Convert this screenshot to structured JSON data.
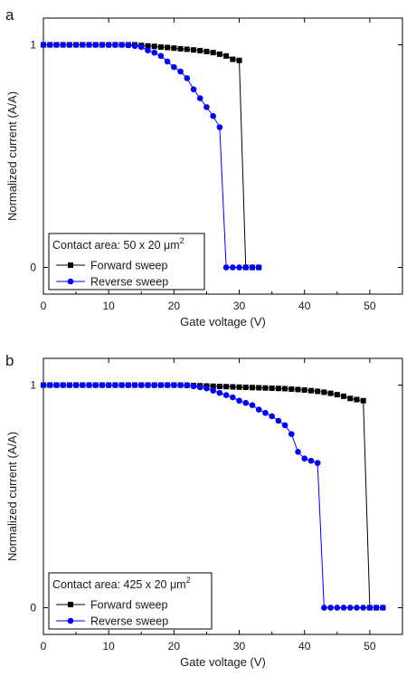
{
  "chart_data": [
    {
      "panel_label": "a",
      "type": "scatter",
      "xlabel": "Gate voltage (V)",
      "ylabel": "Normalized current (A/A)",
      "xlim": [
        0,
        55
      ],
      "ylim": [
        -0.12,
        1.12
      ],
      "xticks": [
        0,
        10,
        20,
        30,
        40,
        50
      ],
      "yticks": [
        0,
        1
      ],
      "grid": false,
      "legend": {
        "title": "Contact area: 50 x 20 μm",
        "superscript": "2",
        "placement": "bottom-left"
      },
      "series": [
        {
          "name": "Forward sweep",
          "marker": "square",
          "color": "#000000",
          "x": [
            0,
            1,
            2,
            3,
            4,
            5,
            6,
            7,
            8,
            9,
            10,
            11,
            12,
            13,
            14,
            15,
            16,
            17,
            18,
            19,
            20,
            21,
            22,
            23,
            24,
            25,
            26,
            27,
            28,
            29,
            30,
            31,
            32,
            33
          ],
          "y": [
            1,
            1,
            1,
            1,
            1,
            1,
            1,
            1,
            1,
            1,
            1,
            1,
            1,
            1,
            1,
            0.997,
            0.995,
            0.993,
            0.99,
            0.988,
            0.985,
            0.982,
            0.98,
            0.977,
            0.974,
            0.97,
            0.965,
            0.958,
            0.95,
            0.935,
            0.93,
            0,
            0,
            0
          ]
        },
        {
          "name": "Reverse sweep",
          "marker": "circle",
          "color": "#0000ff",
          "x": [
            0,
            1,
            2,
            3,
            4,
            5,
            6,
            7,
            8,
            9,
            10,
            11,
            12,
            13,
            14,
            15,
            16,
            17,
            18,
            19,
            20,
            21,
            22,
            23,
            24,
            25,
            26,
            27,
            28,
            29,
            30,
            31,
            32,
            33
          ],
          "y": [
            1,
            1,
            1,
            1,
            1,
            1,
            1,
            1,
            1,
            1,
            1,
            1,
            1,
            0.998,
            0.995,
            0.99,
            0.975,
            0.965,
            0.95,
            0.925,
            0.9,
            0.88,
            0.85,
            0.8,
            0.76,
            0.72,
            0.68,
            0.63,
            0,
            0,
            0,
            0,
            0,
            0
          ]
        }
      ]
    },
    {
      "panel_label": "b",
      "type": "scatter",
      "xlabel": "Gate voltage (V)",
      "ylabel": "Normalized current (A/A)",
      "xlim": [
        0,
        55
      ],
      "ylim": [
        -0.12,
        1.12
      ],
      "xticks": [
        0,
        10,
        20,
        30,
        40,
        50
      ],
      "yticks": [
        0,
        1
      ],
      "grid": false,
      "legend": {
        "title": "Contact area: 425 x 20 μm",
        "superscript": "2",
        "placement": "bottom-left"
      },
      "series": [
        {
          "name": "Forward sweep",
          "marker": "square",
          "color": "#000000",
          "x": [
            0,
            1,
            2,
            3,
            4,
            5,
            6,
            7,
            8,
            9,
            10,
            11,
            12,
            13,
            14,
            15,
            16,
            17,
            18,
            19,
            20,
            21,
            22,
            23,
            24,
            25,
            26,
            27,
            28,
            29,
            30,
            31,
            32,
            33,
            34,
            35,
            36,
            37,
            38,
            39,
            40,
            41,
            42,
            43,
            44,
            45,
            46,
            47,
            48,
            49,
            50,
            51,
            52
          ],
          "y": [
            1,
            1,
            1,
            1,
            1,
            1,
            1,
            1,
            1,
            1,
            1,
            1,
            1,
            1,
            1,
            1,
            1,
            1,
            1,
            1,
            1,
            1,
            0.999,
            0.998,
            0.997,
            0.996,
            0.995,
            0.994,
            0.993,
            0.992,
            0.991,
            0.99,
            0.989,
            0.988,
            0.987,
            0.986,
            0.985,
            0.984,
            0.982,
            0.98,
            0.978,
            0.975,
            0.972,
            0.968,
            0.963,
            0.957,
            0.95,
            0.94,
            0.935,
            0.93,
            0,
            0,
            0
          ]
        },
        {
          "name": "Reverse sweep",
          "marker": "circle",
          "color": "#0000ff",
          "x": [
            0,
            1,
            2,
            3,
            4,
            5,
            6,
            7,
            8,
            9,
            10,
            11,
            12,
            13,
            14,
            15,
            16,
            17,
            18,
            19,
            20,
            21,
            22,
            23,
            24,
            25,
            26,
            27,
            28,
            29,
            30,
            31,
            32,
            33,
            34,
            35,
            36,
            37,
            38,
            39,
            40,
            41,
            42,
            43,
            44,
            45,
            46,
            47,
            48,
            49,
            50,
            51,
            52
          ],
          "y": [
            1,
            1,
            1,
            1,
            1,
            1,
            1,
            1,
            1,
            1,
            1,
            1,
            1,
            1,
            1,
            1,
            1,
            1,
            1,
            1,
            1,
            1,
            1,
            0.995,
            0.99,
            0.985,
            0.975,
            0.965,
            0.955,
            0.945,
            0.93,
            0.92,
            0.91,
            0.89,
            0.875,
            0.86,
            0.84,
            0.82,
            0.78,
            0.7,
            0.67,
            0.66,
            0.65,
            0,
            0,
            0,
            0,
            0,
            0,
            0,
            0,
            0,
            0
          ]
        }
      ]
    }
  ]
}
